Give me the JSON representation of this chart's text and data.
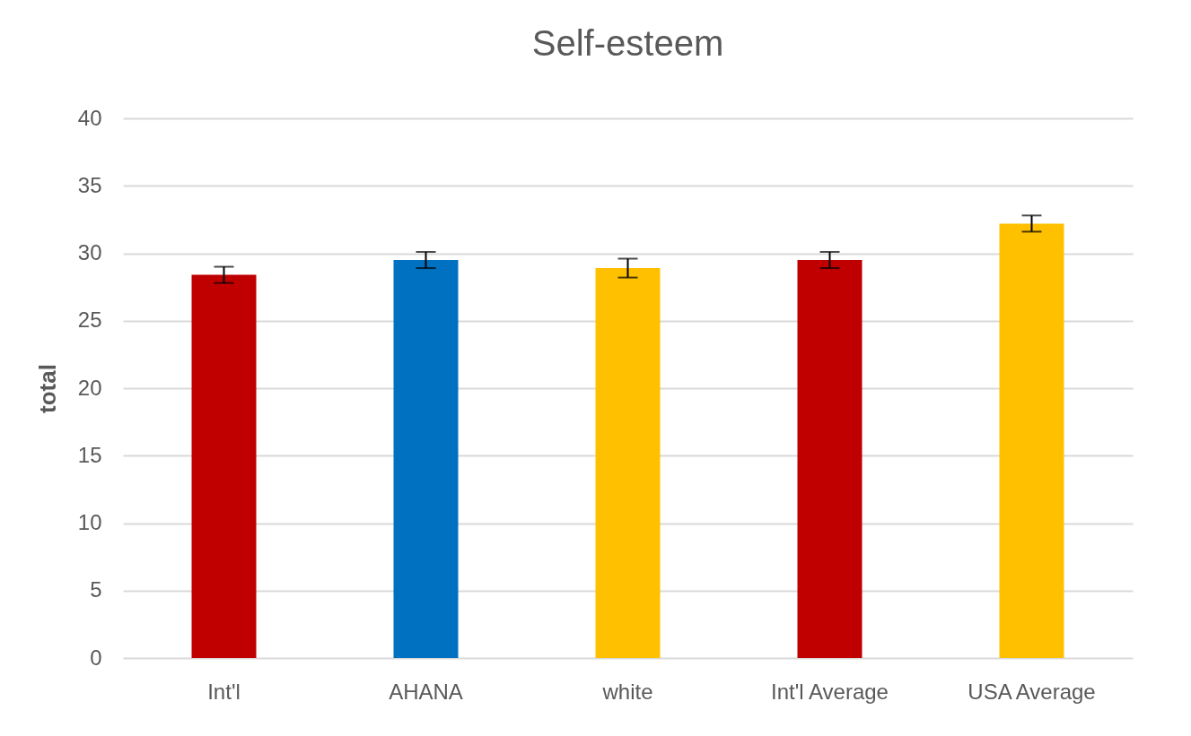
{
  "chart_data": {
    "type": "bar",
    "title": "Self-esteem",
    "ylabel": "total",
    "categories": [
      "Int'l",
      "AHANA",
      "white",
      "Int'l Average",
      "USA Average"
    ],
    "values": [
      28.4,
      29.5,
      28.9,
      29.5,
      32.2
    ],
    "errors": [
      0.6,
      0.6,
      0.7,
      0.6,
      0.6
    ],
    "colors": [
      "#c00000",
      "#0070c0",
      "#ffc000",
      "#c00000",
      "#ffc000"
    ],
    "ylim": [
      0,
      40
    ],
    "yticks": [
      0,
      5,
      10,
      15,
      20,
      25,
      30,
      35,
      40
    ],
    "grid": "y"
  }
}
